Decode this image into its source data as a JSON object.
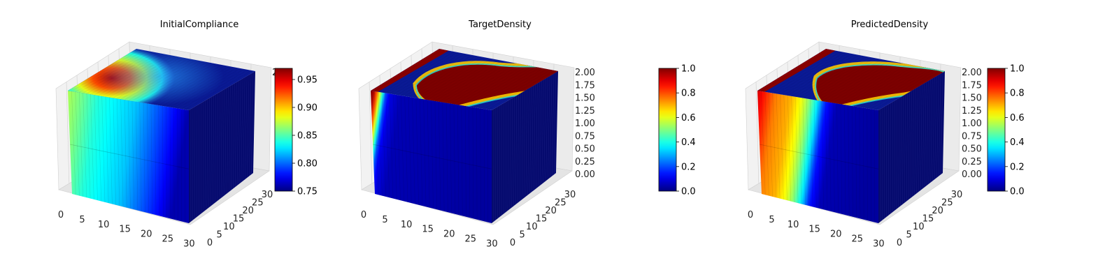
{
  "chart_data": [
    {
      "type": "3d-voxel-heatmap",
      "title": "InitialCompliance",
      "colormap": "jet",
      "xlim": [
        0,
        32
      ],
      "ylim": [
        0,
        32
      ],
      "zlim": [
        0,
        2
      ],
      "x_ticks": [
        "0",
        "5",
        "10",
        "15",
        "20",
        "25",
        "30"
      ],
      "y_ticks": [
        "0",
        "5",
        "10",
        "15",
        "20",
        "25",
        "30"
      ],
      "z_ticks": [
        "",
        "",
        "",
        "",
        "",
        "",
        "",
        "",
        "2.00"
      ],
      "colorbar_range": [
        0.75,
        0.97
      ],
      "colorbar_ticks": [
        "0.75",
        "0.80",
        "0.85",
        "0.90",
        "0.95"
      ],
      "front_face_profile_x": [
        0,
        3,
        8,
        13,
        18,
        23,
        28,
        32
      ],
      "front_face_profile_value": [
        0.87,
        0.86,
        0.84,
        0.83,
        0.82,
        0.8,
        0.78,
        0.76
      ]
    },
    {
      "type": "3d-voxel-heatmap",
      "title": "TargetDensity",
      "colormap": "jet",
      "xlim": [
        0,
        32
      ],
      "ylim": [
        0,
        32
      ],
      "zlim": [
        0,
        2
      ],
      "x_ticks": [
        "0",
        "5",
        "10",
        "15",
        "20",
        "25",
        "30"
      ],
      "y_ticks": [
        "0",
        "5",
        "10",
        "15",
        "20",
        "25",
        "30"
      ],
      "z_ticks": [
        "0.00",
        "0.25",
        "0.50",
        "0.75",
        "1.00",
        "1.25",
        "1.50",
        "1.75",
        "2.00"
      ],
      "colorbar_range": [
        0,
        1
      ],
      "colorbar_ticks": [
        "0.0",
        "0.2",
        "0.4",
        "0.6",
        "0.8",
        "1.0"
      ],
      "front_face_profile_x": [
        0,
        1,
        2,
        3,
        4,
        5,
        8,
        32
      ],
      "front_face_profile_value": [
        1.0,
        0.95,
        0.7,
        0.45,
        0.2,
        0.1,
        0.05,
        0.03
      ]
    },
    {
      "type": "3d-voxel-heatmap",
      "title": "PredictedDensity",
      "colormap": "jet",
      "xlim": [
        0,
        32
      ],
      "ylim": [
        0,
        32
      ],
      "zlim": [
        0,
        2
      ],
      "x_ticks": [
        "0",
        "5",
        "10",
        "15",
        "20",
        "25",
        "30"
      ],
      "y_ticks": [
        "0",
        "5",
        "10",
        "15",
        "20",
        "25",
        "30"
      ],
      "z_ticks": [
        "0.00",
        "0.25",
        "0.50",
        "0.75",
        "1.00",
        "1.25",
        "1.50",
        "1.75",
        "2.00"
      ],
      "colorbar_range": [
        0,
        1
      ],
      "colorbar_ticks": [
        "0.0",
        "0.2",
        "0.4",
        "0.6",
        "0.8",
        "1.0"
      ],
      "front_face_profile_x": [
        0,
        2,
        5,
        9,
        12,
        14,
        16,
        18,
        21,
        32
      ],
      "front_face_profile_value": [
        0.92,
        0.85,
        0.75,
        0.7,
        0.6,
        0.5,
        0.35,
        0.15,
        0.05,
        0.03
      ]
    }
  ]
}
